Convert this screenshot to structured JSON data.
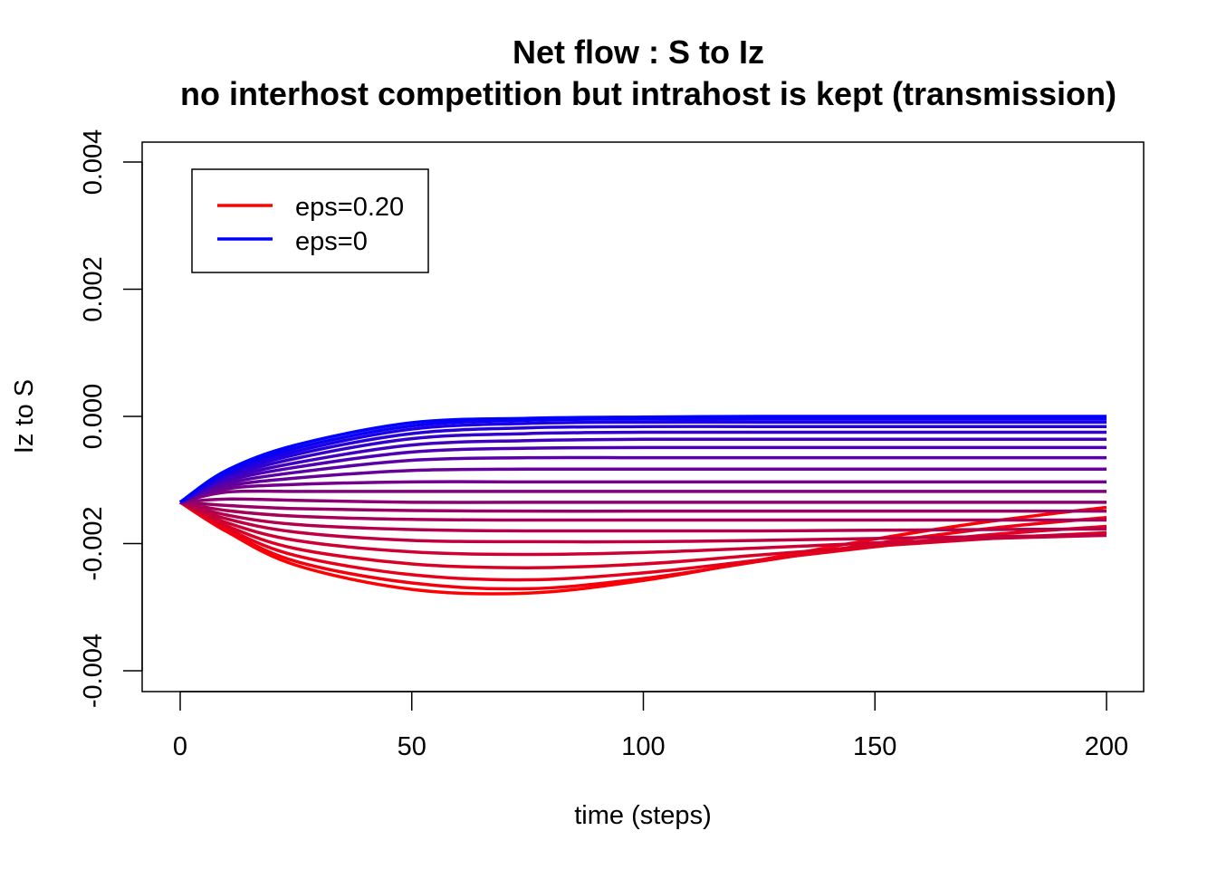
{
  "chart_data": {
    "type": "line",
    "title": "Net flow : S to Iz",
    "subtitle": "no interhost competition but intrahost is kept (transmission)",
    "xlabel": "time (steps)",
    "ylabel": "Iz to S",
    "xlim": [
      0,
      200
    ],
    "ylim": [
      -0.004,
      0.004
    ],
    "x_ticks": [
      "0",
      "50",
      "100",
      "150",
      "200"
    ],
    "y_ticks": [
      "-0.004",
      "-0.002",
      "0.000",
      "0.002",
      "0.004"
    ],
    "legend": {
      "placement": "top-left",
      "entries": [
        {
          "label": "eps=0.20",
          "color": "#ff0000"
        },
        {
          "label": "eps=0",
          "color": "#0000ff"
        }
      ]
    },
    "series_count": 21,
    "color_gradient": {
      "from": "#0000ff",
      "to": "#ff0000"
    },
    "series_points": [
      {
        "x": [
          0,
          10,
          25,
          50,
          75,
          100,
          125,
          150,
          175,
          200
        ],
        "y": [
          -0.00135,
          -0.00085,
          -0.00045,
          -0.0001,
          -3e-05,
          -1e-05,
          0.0,
          0.0,
          0.0,
          0.0
        ]
      },
      {
        "x": [
          0,
          10,
          25,
          50,
          75,
          100,
          125,
          150,
          175,
          200
        ],
        "y": [
          -0.00135,
          -0.00088,
          -0.0005,
          -0.00015,
          -6e-05,
          -4e-05,
          -4e-05,
          -4e-05,
          -4e-05,
          -4e-05
        ]
      },
      {
        "x": [
          0,
          10,
          25,
          50,
          75,
          100,
          125,
          150,
          175,
          200
        ],
        "y": [
          -0.00135,
          -0.0009,
          -0.00055,
          -0.0002,
          -0.00011,
          -9e-05,
          -9e-05,
          -9e-05,
          -9e-05,
          -9e-05
        ]
      },
      {
        "x": [
          0,
          10,
          25,
          50,
          75,
          100,
          125,
          150,
          175,
          200
        ],
        "y": [
          -0.00135,
          -0.00093,
          -0.0006,
          -0.00027,
          -0.00018,
          -0.00016,
          -0.00016,
          -0.00016,
          -0.00016,
          -0.00016
        ]
      },
      {
        "x": [
          0,
          10,
          25,
          50,
          75,
          100,
          125,
          150,
          175,
          200
        ],
        "y": [
          -0.00135,
          -0.00096,
          -0.00066,
          -0.00035,
          -0.00027,
          -0.00025,
          -0.00025,
          -0.00025,
          -0.00025,
          -0.00025
        ]
      },
      {
        "x": [
          0,
          10,
          25,
          50,
          75,
          100,
          125,
          150,
          175,
          200
        ],
        "y": [
          -0.00135,
          -0.00099,
          -0.00073,
          -0.00045,
          -0.00038,
          -0.00036,
          -0.00036,
          -0.00036,
          -0.00036,
          -0.00036
        ]
      },
      {
        "x": [
          0,
          10,
          25,
          50,
          75,
          100,
          125,
          150,
          175,
          200
        ],
        "y": [
          -0.00135,
          -0.00102,
          -0.0008,
          -0.00056,
          -0.0005,
          -0.00049,
          -0.00049,
          -0.00049,
          -0.00049,
          -0.00049
        ]
      },
      {
        "x": [
          0,
          10,
          25,
          50,
          75,
          100,
          125,
          150,
          175,
          200
        ],
        "y": [
          -0.00135,
          -0.00106,
          -0.00088,
          -0.00069,
          -0.00065,
          -0.00065,
          -0.00065,
          -0.00065,
          -0.00065,
          -0.00065
        ]
      },
      {
        "x": [
          0,
          10,
          25,
          50,
          75,
          100,
          125,
          150,
          175,
          200
        ],
        "y": [
          -0.00135,
          -0.0011,
          -0.00097,
          -0.00085,
          -0.00083,
          -0.00083,
          -0.00083,
          -0.00083,
          -0.00083,
          -0.00083
        ]
      },
      {
        "x": [
          0,
          10,
          25,
          50,
          75,
          100,
          125,
          150,
          175,
          200
        ],
        "y": [
          -0.00135,
          -0.00114,
          -0.00107,
          -0.00103,
          -0.00103,
          -0.00103,
          -0.00103,
          -0.00103,
          -0.00103,
          -0.00103
        ]
      },
      {
        "x": [
          0,
          10,
          25,
          50,
          75,
          100,
          125,
          150,
          175,
          200
        ],
        "y": [
          -0.00135,
          -0.00119,
          -0.00118,
          -0.00118,
          -0.00118,
          -0.00118,
          -0.00118,
          -0.00118,
          -0.00118,
          -0.00118
        ]
      },
      {
        "x": [
          0,
          10,
          25,
          50,
          75,
          100,
          125,
          150,
          175,
          200
        ],
        "y": [
          -0.00135,
          -0.0013,
          -0.00132,
          -0.00135,
          -0.00135,
          -0.00135,
          -0.00135,
          -0.00135,
          -0.00135,
          -0.00135
        ]
      },
      {
        "x": [
          0,
          10,
          25,
          50,
          75,
          100,
          125,
          150,
          175,
          200
        ],
        "y": [
          -0.00135,
          -0.0014,
          -0.00145,
          -0.00148,
          -0.00149,
          -0.00149,
          -0.00149,
          -0.00149,
          -0.00149,
          -0.00149
        ]
      },
      {
        "x": [
          0,
          10,
          25,
          50,
          75,
          100,
          125,
          150,
          175,
          200
        ],
        "y": [
          -0.00135,
          -0.00148,
          -0.00157,
          -0.00162,
          -0.00163,
          -0.00163,
          -0.00163,
          -0.00163,
          -0.00163,
          -0.00163
        ]
      },
      {
        "x": [
          0,
          10,
          25,
          50,
          75,
          100,
          125,
          150,
          175,
          200
        ],
        "y": [
          -0.00135,
          -0.00155,
          -0.0017,
          -0.00178,
          -0.0018,
          -0.0018,
          -0.0018,
          -0.00179,
          -0.00178,
          -0.00177
        ]
      },
      {
        "x": [
          0,
          10,
          25,
          50,
          75,
          100,
          125,
          150,
          175,
          200
        ],
        "y": [
          -0.00135,
          -0.00161,
          -0.00182,
          -0.00195,
          -0.00197,
          -0.00197,
          -0.00195,
          -0.00192,
          -0.00189,
          -0.00187
        ]
      },
      {
        "x": [
          0,
          10,
          25,
          50,
          75,
          100,
          125,
          150,
          175,
          200
        ],
        "y": [
          -0.00135,
          -0.00167,
          -0.00195,
          -0.00213,
          -0.00217,
          -0.00214,
          -0.00207,
          -0.00199,
          -0.00192,
          -0.00187
        ]
      },
      {
        "x": [
          0,
          10,
          25,
          50,
          75,
          100,
          125,
          150,
          175,
          200
        ],
        "y": [
          -0.00135,
          -0.00172,
          -0.00208,
          -0.00232,
          -0.00238,
          -0.00232,
          -0.00218,
          -0.00204,
          -0.00192,
          -0.00183
        ]
      },
      {
        "x": [
          0,
          10,
          25,
          50,
          75,
          100,
          125,
          150,
          175,
          200
        ],
        "y": [
          -0.00135,
          -0.00176,
          -0.00219,
          -0.00249,
          -0.00257,
          -0.00246,
          -0.00226,
          -0.00205,
          -0.00186,
          -0.00173
        ]
      },
      {
        "x": [
          0,
          10,
          25,
          50,
          75,
          100,
          125,
          150,
          175,
          200
        ],
        "y": [
          -0.00135,
          -0.00179,
          -0.00228,
          -0.00262,
          -0.00271,
          -0.00255,
          -0.00228,
          -0.002,
          -0.00176,
          -0.00159
        ]
      },
      {
        "x": [
          0,
          10,
          25,
          50,
          75,
          100,
          125,
          150,
          175,
          200
        ],
        "y": [
          -0.00135,
          -0.00181,
          -0.00234,
          -0.00272,
          -0.00278,
          -0.00258,
          -0.00226,
          -0.00193,
          -0.00165,
          -0.00143
        ]
      }
    ]
  }
}
